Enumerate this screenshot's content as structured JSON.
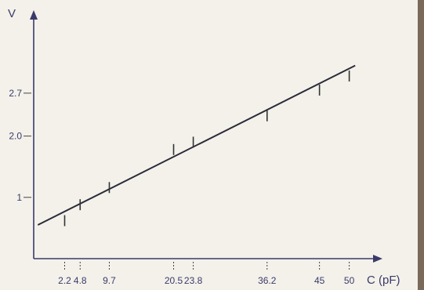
{
  "chart_data": {
    "type": "scatter",
    "xlabel": "C (pF)",
    "ylabel": "V",
    "x_ticks": [
      2.2,
      4.8,
      9.7,
      20.5,
      23.8,
      36.2,
      45,
      50
    ],
    "x_tick_labels": [
      "2.2",
      "4.8",
      "9.7",
      "20.5",
      "23.8",
      "36.2",
      "45",
      "50"
    ],
    "y_ticks": [
      1,
      2.0,
      2.7
    ],
    "y_tick_labels": [
      "1",
      "2.0",
      "2.7"
    ],
    "xlim": [
      -3,
      54
    ],
    "ylim": [
      0,
      3.9
    ],
    "grid": false,
    "series": [
      {
        "x": [
          2.2,
          4.8,
          9.7,
          20.5,
          23.8,
          36.2,
          45,
          50
        ],
        "y": [
          0.62,
          0.88,
          1.16,
          1.78,
          1.9,
          2.33,
          2.75,
          2.98
        ]
      }
    ],
    "fit_line": {
      "x": [
        -2.3,
        51
      ],
      "y": [
        0.55,
        3.15
      ]
    },
    "colors": {
      "axis": "#3a3a6a",
      "line": "#2b2b3a",
      "background": "#f4f1ea"
    }
  }
}
